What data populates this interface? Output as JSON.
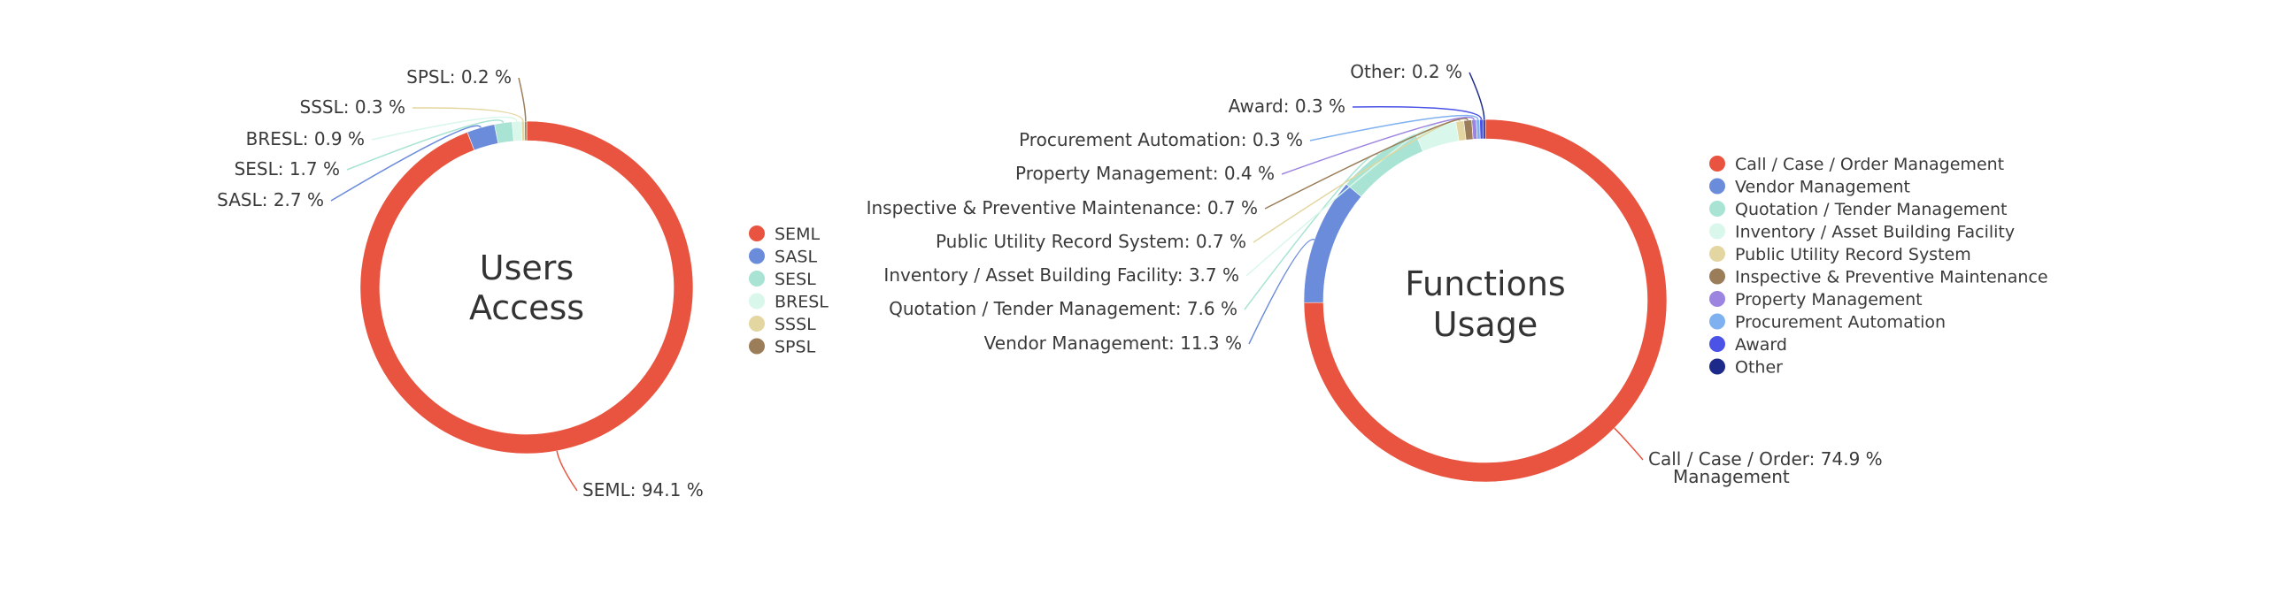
{
  "chart_data": [
    {
      "type": "pie",
      "title": "Users Access",
      "center_lines": [
        "Users",
        "Access"
      ],
      "series": [
        {
          "values": [
            94.1,
            2.7,
            1.7,
            0.9,
            0.3,
            0.2
          ]
        }
      ],
      "categories": [
        "SEML",
        "SASL",
        "SESL",
        "BRESL",
        "SSSL",
        "SPSL"
      ],
      "colors": [
        "#E8543F",
        "#6B8BDB",
        "#A8E3D3",
        "#D9F7EA",
        "#E3D6A0",
        "#9B7D5A"
      ],
      "data_labels": [
        "SEML: 94.1 %",
        "SASL: 2.7 %",
        "SESL: 1.7 %",
        "BRESL: 0.9 %",
        "SSSL: 0.3 %",
        "SPSL: 0.2 %"
      ],
      "legend_position": "right",
      "donut": true
    },
    {
      "type": "pie",
      "title": "Functions Usage",
      "center_lines": [
        "Functions",
        "Usage"
      ],
      "series": [
        {
          "values": [
            74.9,
            11.3,
            7.6,
            3.7,
            0.7,
            0.7,
            0.4,
            0.3,
            0.3,
            0.2
          ]
        }
      ],
      "categories": [
        "Call / Case / Order Management",
        "Vendor Management",
        "Quotation / Tender Management",
        "Inventory / Asset Building Facility",
        "Public Utility Record System",
        "Inspective & Preventive Maintenance",
        "Property Management",
        "Procurement Automation",
        "Award",
        "Other"
      ],
      "colors": [
        "#E8543F",
        "#6B8BDB",
        "#A8E3D3",
        "#D9F7EA",
        "#E3D6A0",
        "#9B7D5A",
        "#9C85E0",
        "#7FB1F0",
        "#4B52E6",
        "#1D2A8A"
      ],
      "data_labels": [
        "Call / Case / Order Management: 74.9 %",
        "Vendor Management: 11.3 %",
        "Quotation / Tender Management: 7.6 %",
        "Inventory / Asset Building Facility: 3.7 %",
        "Public Utility Record System: 0.7 %",
        "Inspective & Preventive Maintenance: 0.7 %",
        "Property Management: 0.4 %",
        "Procurement Automation: 0.3 %",
        "Award: 0.3 %",
        "Other: 0.2 %"
      ],
      "data_label_lines": [
        [
          "Call / Case / Order: 74.9 %",
          "Management"
        ]
      ],
      "legend_position": "right",
      "donut": true
    }
  ]
}
